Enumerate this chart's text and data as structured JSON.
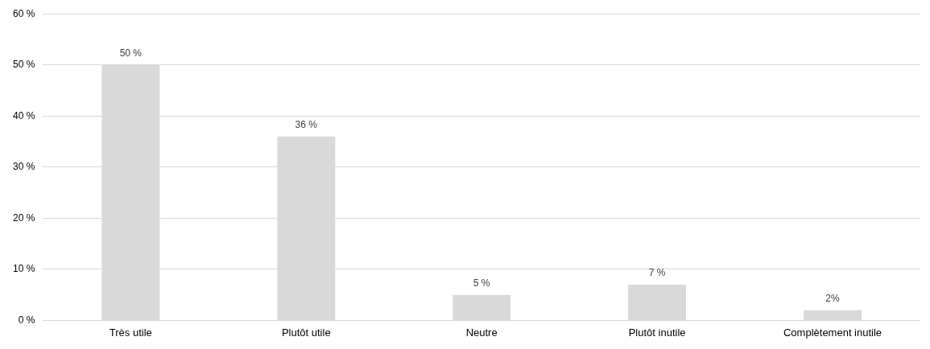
{
  "chart_data": {
    "type": "bar",
    "categories": [
      "Très utile",
      "Plutôt utile",
      "Neutre",
      "Plutôt inutile",
      "Complètement inutile"
    ],
    "values": [
      50,
      36,
      5,
      7,
      2
    ],
    "value_labels": [
      "50 %",
      "36 %",
      "5 %",
      "7 %",
      "2%"
    ],
    "color": "#d9d9d9",
    "ylim": [
      0,
      60
    ],
    "yticks": [
      {
        "value": 0,
        "label": "0 %"
      },
      {
        "value": 10,
        "label": "10 %"
      },
      {
        "value": 20,
        "label": "20 %"
      },
      {
        "value": 30,
        "label": "30 %"
      },
      {
        "value": 40,
        "label": "40 %"
      },
      {
        "value": 50,
        "label": "50 %"
      },
      {
        "value": 60,
        "label": "60 %"
      }
    ],
    "grid": "y"
  }
}
